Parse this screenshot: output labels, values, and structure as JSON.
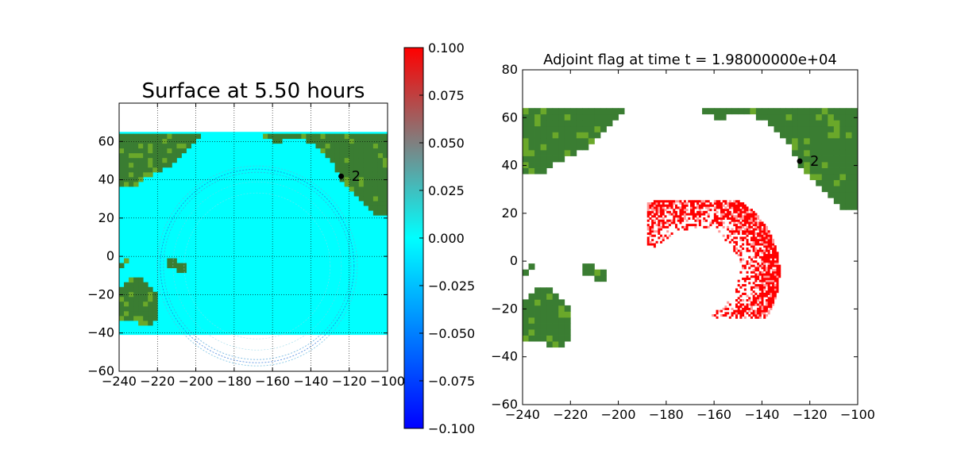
{
  "chart_data": [
    {
      "type": "heatmap",
      "title": "Surface at 5.50 hours",
      "xlim": [
        -240,
        -100
      ],
      "ylim": [
        -60,
        80
      ],
      "xticks": [
        -240,
        -220,
        -200,
        -180,
        -160,
        -140,
        -120,
        -100
      ],
      "yticks": [
        -60,
        -40,
        -20,
        0,
        20,
        40,
        60
      ],
      "grid": true,
      "colors": {
        "water": "#00ffff",
        "land": "#3a7d32",
        "land_low": "#6aa82a"
      },
      "gauge": {
        "label": "2",
        "x": -124.2,
        "y": 41.8
      },
      "colorbar": {
        "min": -0.1,
        "max": 0.1,
        "ticks": [
          "0.100",
          "0.075",
          "0.050",
          "0.025",
          "0.000",
          "−0.025",
          "−0.050",
          "−0.075",
          "−0.100"
        ],
        "colors": [
          "#0000ff",
          "#00ffff",
          "#ff0000"
        ]
      }
    },
    {
      "type": "heatmap",
      "title": "Adjoint flag at time t = 1.98000000e+04",
      "xlim": [
        -240,
        -100
      ],
      "ylim": [
        -60,
        80
      ],
      "xticks": [
        -240,
        -220,
        -200,
        -180,
        -160,
        -140,
        -120,
        -100
      ],
      "yticks": [
        -60,
        -40,
        -20,
        0,
        20,
        40,
        60,
        80
      ],
      "grid": false,
      "colors": {
        "flag": "#ff0000",
        "land": "#3a7d32",
        "land_low": "#6aa82a"
      },
      "gauge": {
        "label": "2",
        "x": -124.2,
        "y": 41.8
      }
    }
  ]
}
